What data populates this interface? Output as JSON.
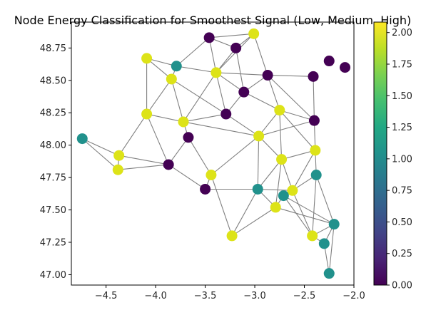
{
  "chart_data": {
    "type": "scatter",
    "title": "Node Energy Classification for Smoothest Signal (Low, Medium, High)",
    "xlim": [
      -4.85,
      -2.0
    ],
    "ylim": [
      46.92,
      48.95
    ],
    "xticks": [
      -4.5,
      -4.0,
      -3.5,
      -3.0,
      -2.5,
      -2.0
    ],
    "xtick_labels": [
      "−4.5",
      "−4.0",
      "−3.5",
      "−3.0",
      "−2.5",
      "−2.0"
    ],
    "yticks": [
      47.0,
      47.25,
      47.5,
      47.75,
      48.0,
      48.25,
      48.5,
      48.75
    ],
    "ytick_labels": [
      "47.00",
      "47.25",
      "47.50",
      "47.75",
      "48.00",
      "48.25",
      "48.50",
      "48.75"
    ],
    "colormap": "viridis",
    "color_range": [
      0.0,
      2.083
    ],
    "colorbar_ticks": [
      0.0,
      0.25,
      0.5,
      0.75,
      1.0,
      1.25,
      1.5,
      1.75,
      2.0
    ],
    "colorbar_tick_labels": [
      "0.00",
      "0.25",
      "0.50",
      "0.75",
      "1.00",
      "1.25",
      "1.50",
      "1.75",
      "2.00"
    ],
    "node_colors": {
      "low": "#440154",
      "medium": "#21918c",
      "high": "#dde318"
    },
    "edge_color": "#808080",
    "nodes": [
      {
        "x": -3.46,
        "y": 48.83,
        "class": 0
      },
      {
        "x": -3.01,
        "y": 48.86,
        "class": 2
      },
      {
        "x": -3.19,
        "y": 48.75,
        "class": 0
      },
      {
        "x": -4.09,
        "y": 48.67,
        "class": 2
      },
      {
        "x": -3.79,
        "y": 48.61,
        "class": 1
      },
      {
        "x": -3.39,
        "y": 48.56,
        "class": 2
      },
      {
        "x": -2.87,
        "y": 48.54,
        "class": 0
      },
      {
        "x": -3.84,
        "y": 48.51,
        "class": 2
      },
      {
        "x": -2.41,
        "y": 48.53,
        "class": 0
      },
      {
        "x": -2.25,
        "y": 48.65,
        "class": 0
      },
      {
        "x": -2.09,
        "y": 48.6,
        "class": 0
      },
      {
        "x": -3.11,
        "y": 48.41,
        "class": 0
      },
      {
        "x": -2.75,
        "y": 48.27,
        "class": 2
      },
      {
        "x": -4.09,
        "y": 48.24,
        "class": 2
      },
      {
        "x": -3.29,
        "y": 48.24,
        "class": 0
      },
      {
        "x": -3.72,
        "y": 48.18,
        "class": 2
      },
      {
        "x": -2.4,
        "y": 48.19,
        "class": 0
      },
      {
        "x": -4.74,
        "y": 48.05,
        "class": 1
      },
      {
        "x": -3.67,
        "y": 48.06,
        "class": 0
      },
      {
        "x": -2.96,
        "y": 48.07,
        "class": 2
      },
      {
        "x": -2.39,
        "y": 47.96,
        "class": 2
      },
      {
        "x": -4.37,
        "y": 47.92,
        "class": 2
      },
      {
        "x": -2.73,
        "y": 47.89,
        "class": 2
      },
      {
        "x": -3.87,
        "y": 47.85,
        "class": 0
      },
      {
        "x": -4.38,
        "y": 47.81,
        "class": 2
      },
      {
        "x": -3.44,
        "y": 47.77,
        "class": 2
      },
      {
        "x": -2.38,
        "y": 47.77,
        "class": 1
      },
      {
        "x": -3.5,
        "y": 47.66,
        "class": 0
      },
      {
        "x": -2.97,
        "y": 47.66,
        "class": 1
      },
      {
        "x": -2.62,
        "y": 47.65,
        "class": 2
      },
      {
        "x": -2.71,
        "y": 47.61,
        "class": 1
      },
      {
        "x": -2.79,
        "y": 47.52,
        "class": 2
      },
      {
        "x": -2.2,
        "y": 47.39,
        "class": 1
      },
      {
        "x": -3.23,
        "y": 47.3,
        "class": 2
      },
      {
        "x": -2.42,
        "y": 47.3,
        "class": 2
      },
      {
        "x": -2.3,
        "y": 47.24,
        "class": 1
      },
      {
        "x": -2.25,
        "y": 47.01,
        "class": 1
      }
    ],
    "edges": [
      [
        0,
        1
      ],
      [
        0,
        2
      ],
      [
        0,
        4
      ],
      [
        0,
        5
      ],
      [
        1,
        2
      ],
      [
        1,
        5
      ],
      [
        1,
        6
      ],
      [
        2,
        5
      ],
      [
        2,
        11
      ],
      [
        3,
        4
      ],
      [
        3,
        7
      ],
      [
        3,
        13
      ],
      [
        4,
        5
      ],
      [
        4,
        7
      ],
      [
        5,
        11
      ],
      [
        5,
        6
      ],
      [
        5,
        14
      ],
      [
        5,
        15
      ],
      [
        6,
        11
      ],
      [
        6,
        12
      ],
      [
        6,
        8
      ],
      [
        6,
        16
      ],
      [
        7,
        15
      ],
      [
        7,
        14
      ],
      [
        7,
        13
      ],
      [
        8,
        16
      ],
      [
        11,
        12
      ],
      [
        11,
        14
      ],
      [
        12,
        16
      ],
      [
        12,
        19
      ],
      [
        12,
        20
      ],
      [
        12,
        22
      ],
      [
        13,
        15
      ],
      [
        13,
        21
      ],
      [
        13,
        23
      ],
      [
        14,
        19
      ],
      [
        14,
        15
      ],
      [
        15,
        18
      ],
      [
        15,
        19
      ],
      [
        16,
        20
      ],
      [
        16,
        19
      ],
      [
        17,
        21
      ],
      [
        17,
        24
      ],
      [
        18,
        23
      ],
      [
        18,
        25
      ],
      [
        19,
        25
      ],
      [
        19,
        22
      ],
      [
        19,
        28
      ],
      [
        20,
        22
      ],
      [
        20,
        26
      ],
      [
        20,
        29
      ],
      [
        21,
        24
      ],
      [
        21,
        23
      ],
      [
        22,
        29
      ],
      [
        22,
        28
      ],
      [
        22,
        31
      ],
      [
        23,
        27
      ],
      [
        24,
        23
      ],
      [
        25,
        27
      ],
      [
        25,
        33
      ],
      [
        26,
        29
      ],
      [
        26,
        32
      ],
      [
        27,
        28
      ],
      [
        28,
        29
      ],
      [
        28,
        33
      ],
      [
        28,
        31
      ],
      [
        29,
        30
      ],
      [
        29,
        34
      ],
      [
        30,
        31
      ],
      [
        30,
        34
      ],
      [
        31,
        33
      ],
      [
        31,
        32
      ],
      [
        32,
        34
      ],
      [
        32,
        35
      ],
      [
        32,
        36
      ],
      [
        34,
        35
      ],
      [
        34,
        26
      ],
      [
        35,
        36
      ],
      [
        30,
        32
      ]
    ]
  }
}
